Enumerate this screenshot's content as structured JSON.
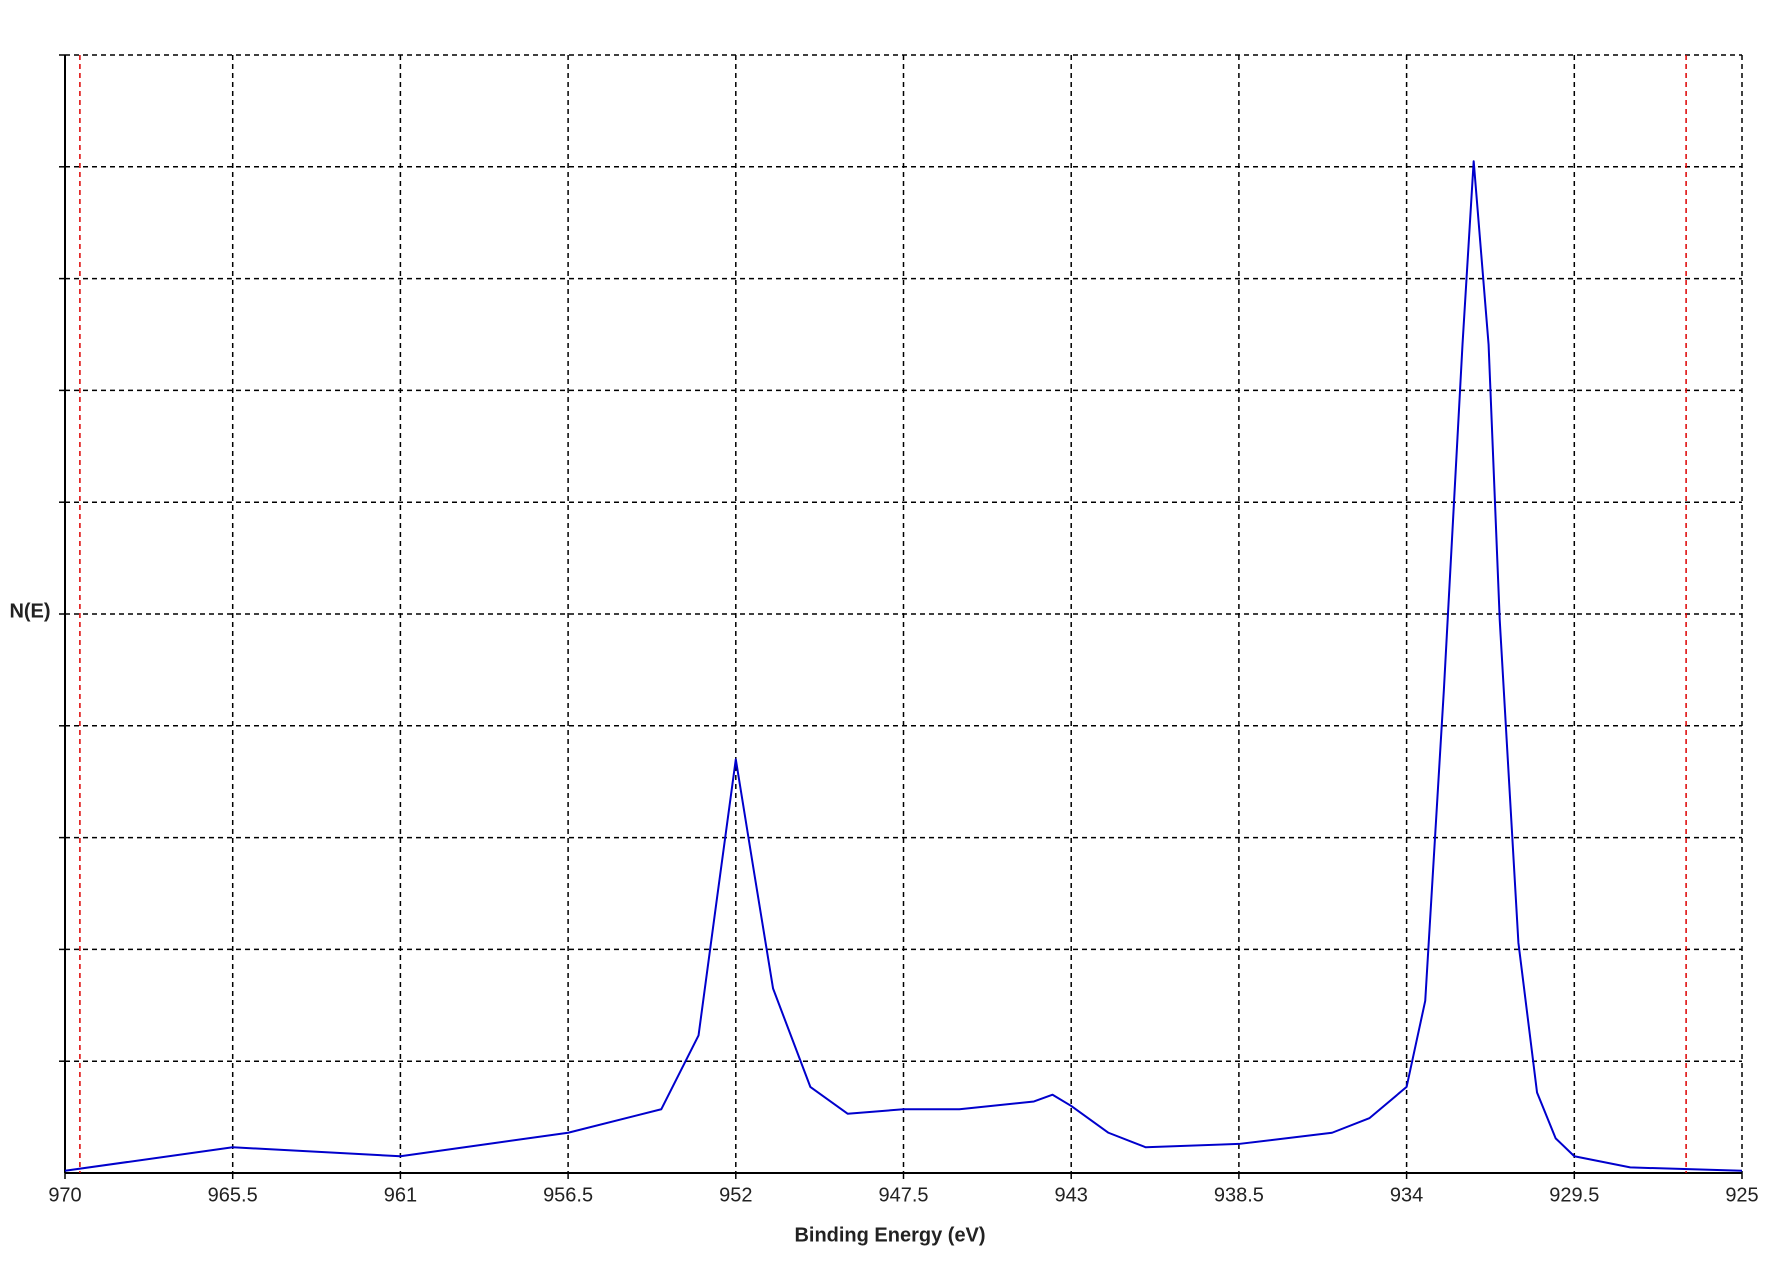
{
  "chart_data": {
    "type": "line",
    "xlabel": "Binding Energy (eV)",
    "ylabel": "N(E)",
    "xlim": [
      970,
      925
    ],
    "xticks": [
      970,
      965.5,
      961,
      956.5,
      952,
      947.5,
      943,
      938.5,
      934,
      929.5,
      925
    ],
    "ylim": [
      0,
      10
    ],
    "ygrid": [
      1,
      2,
      3,
      4,
      5,
      6,
      7,
      8,
      9,
      10
    ],
    "grid": true,
    "series": [
      {
        "color": "#0000cc",
        "x": [
          970,
          965.5,
          961,
          956.5,
          954,
          953,
          952.5,
          952,
          951.5,
          951,
          950,
          949,
          947.5,
          946,
          944,
          943.5,
          943,
          942,
          941,
          938.5,
          936,
          935,
          934,
          933.5,
          933,
          932.5,
          932.2,
          931.8,
          931.5,
          931,
          930.5,
          930,
          929.5,
          928,
          925
        ],
        "values": [
          0.02,
          0.23,
          0.15,
          0.36,
          0.57,
          1.23,
          2.47,
          3.7,
          2.67,
          1.65,
          0.77,
          0.53,
          0.57,
          0.57,
          0.64,
          0.7,
          0.6,
          0.36,
          0.23,
          0.26,
          0.36,
          0.49,
          0.77,
          1.54,
          4.32,
          7.41,
          9.05,
          7.41,
          4.94,
          2.06,
          0.72,
          0.31,
          0.15,
          0.05,
          0.02
        ]
      }
    ],
    "markers": {
      "color": "#dd0000",
      "x": [
        969.6,
        926.5
      ]
    }
  }
}
